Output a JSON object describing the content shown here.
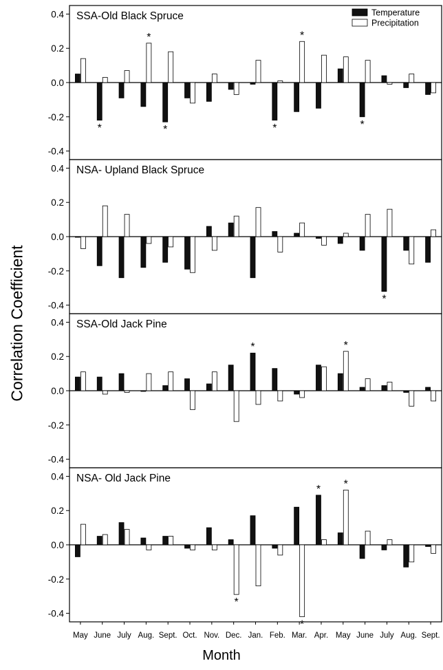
{
  "chart_data": {
    "type": "bar",
    "ylabel": "Correlation Coefficient",
    "xlabel": "Month",
    "months": [
      "May",
      "June",
      "July",
      "Aug.",
      "Sept.",
      "Oct.",
      "Nov.",
      "Dec.",
      "Jan.",
      "Feb.",
      "Mar.",
      "Apr.",
      "May",
      "June",
      "July",
      "Aug.",
      "Sept."
    ],
    "ylim": [
      -0.45,
      0.45
    ],
    "yticks": [
      "0.4",
      "0.2",
      "0.0",
      "-0.2",
      "-0.4"
    ],
    "legend": {
      "placement": "top-right",
      "entries": [
        "Temperature",
        "Precipitation"
      ]
    },
    "series_colors": {
      "Temperature": "#111111",
      "Precipitation": "#ffffff"
    },
    "significance_marker": "*",
    "panels": [
      {
        "title": "SSA-Old Black Spruce",
        "series": [
          {
            "name": "Temperature",
            "values": [
              0.05,
              -0.22,
              -0.09,
              -0.14,
              -0.23,
              -0.09,
              -0.11,
              -0.04,
              -0.01,
              -0.22,
              -0.17,
              -0.15,
              0.08,
              -0.2,
              0.04,
              -0.03,
              -0.07
            ]
          },
          {
            "name": "Precipitation",
            "values": [
              0.14,
              0.03,
              0.07,
              0.23,
              0.18,
              -0.12,
              0.05,
              -0.07,
              0.13,
              0.01,
              0.24,
              0.16,
              0.15,
              0.13,
              -0.01,
              0.05,
              -0.06
            ]
          }
        ],
        "significant": [
          {
            "series": "Temperature",
            "index": 1
          },
          {
            "series": "Precipitation",
            "index": 3
          },
          {
            "series": "Temperature",
            "index": 4
          },
          {
            "series": "Temperature",
            "index": 9
          },
          {
            "series": "Precipitation",
            "index": 10
          },
          {
            "series": "Temperature",
            "index": 13
          }
        ]
      },
      {
        "title": "NSA- Upland Black Spruce",
        "series": [
          {
            "name": "Temperature",
            "values": [
              0.0,
              -0.17,
              -0.24,
              -0.18,
              -0.15,
              -0.19,
              0.06,
              0.08,
              -0.24,
              0.03,
              0.02,
              -0.01,
              -0.04,
              -0.08,
              -0.32,
              -0.08,
              -0.15
            ]
          },
          {
            "name": "Precipitation",
            "values": [
              -0.07,
              0.18,
              0.13,
              -0.04,
              -0.06,
              -0.21,
              -0.08,
              0.12,
              0.17,
              -0.09,
              0.08,
              -0.05,
              0.02,
              0.13,
              0.16,
              -0.16,
              0.04
            ]
          }
        ],
        "significant": [
          {
            "series": "Temperature",
            "index": 14
          }
        ]
      },
      {
        "title": "SSA-Old Jack Pine",
        "series": [
          {
            "name": "Temperature",
            "values": [
              0.08,
              0.08,
              0.1,
              0.0,
              0.03,
              0.07,
              0.04,
              0.15,
              0.22,
              0.13,
              -0.02,
              0.15,
              0.1,
              0.02,
              0.03,
              -0.01,
              0.02
            ]
          },
          {
            "name": "Precipitation",
            "values": [
              0.11,
              -0.02,
              -0.01,
              0.1,
              0.11,
              -0.11,
              0.11,
              -0.18,
              -0.08,
              -0.06,
              -0.04,
              0.14,
              0.23,
              0.07,
              0.05,
              -0.09,
              -0.06
            ]
          }
        ],
        "significant": [
          {
            "series": "Temperature",
            "index": 8
          },
          {
            "series": "Precipitation",
            "index": 12
          }
        ]
      },
      {
        "title": "NSA- Old Jack Pine",
        "series": [
          {
            "name": "Temperature",
            "values": [
              -0.07,
              0.05,
              0.13,
              0.04,
              0.05,
              -0.02,
              0.1,
              0.03,
              0.17,
              -0.02,
              0.22,
              0.29,
              0.07,
              -0.08,
              -0.03,
              -0.13,
              -0.01
            ]
          },
          {
            "name": "Precipitation",
            "values": [
              0.12,
              0.06,
              0.09,
              -0.03,
              0.05,
              -0.03,
              -0.03,
              -0.29,
              -0.24,
              -0.06,
              -0.42,
              0.03,
              0.32,
              0.08,
              0.03,
              -0.1,
              -0.05
            ]
          }
        ],
        "significant": [
          {
            "series": "Precipitation",
            "index": 7
          },
          {
            "series": "Precipitation",
            "index": 10
          },
          {
            "series": "Temperature",
            "index": 11
          },
          {
            "series": "Precipitation",
            "index": 12
          }
        ]
      }
    ]
  }
}
